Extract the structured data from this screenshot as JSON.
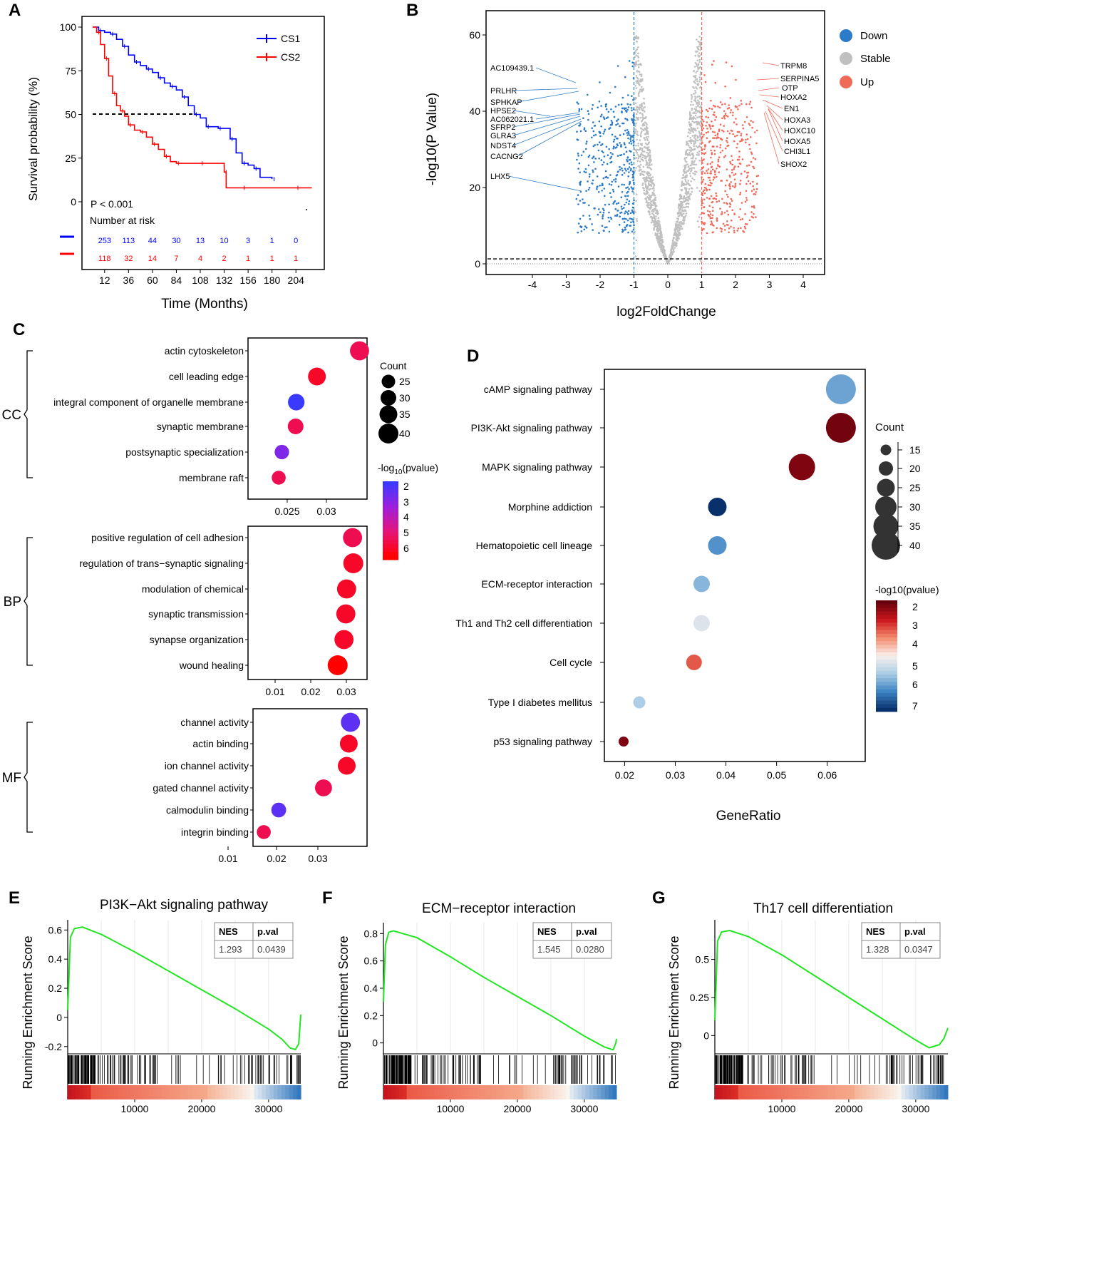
{
  "panels": {
    "A": "A",
    "B": "B",
    "C": "C",
    "D": "D",
    "E": "E",
    "F": "F",
    "G": "G"
  },
  "colors": {
    "cs1": "#0000ff",
    "cs2": "#ff0000",
    "down": "#2b7bc8",
    "stable": "#c0c0c0",
    "up": "#f06a5a",
    "gsea_line": "#22e622",
    "grad_low": "#ff0000",
    "grad_high": "#3a3aff"
  },
  "chart_data": [
    {
      "id": "A",
      "type": "line",
      "title": "",
      "xlabel": "Time (Months)",
      "ylabel": "Survival probability (%)",
      "xlim": [
        0,
        216
      ],
      "ylim": [
        0,
        100
      ],
      "x_ticks": [
        12,
        36,
        60,
        84,
        108,
        132,
        156,
        180,
        204
      ],
      "y_ticks": [
        0,
        25,
        50,
        75,
        100
      ],
      "pvalue_text": "P < 0.001",
      "risk_table_title": "Number at risk",
      "median_line_y": 50,
      "series": [
        {
          "name": "CS1",
          "color": "#0000ff",
          "x": [
            0,
            6,
            12,
            18,
            24,
            30,
            36,
            42,
            48,
            54,
            60,
            66,
            72,
            78,
            84,
            90,
            96,
            102,
            108,
            114,
            120,
            126,
            132,
            138,
            144,
            150,
            156,
            162,
            168,
            180
          ],
          "y": [
            100,
            98,
            97,
            96,
            93,
            89,
            84,
            80,
            78,
            76,
            74,
            71,
            68,
            66,
            64,
            60,
            55,
            50,
            48,
            43,
            43,
            42,
            42,
            36,
            28,
            22,
            21,
            19,
            14,
            13
          ]
        },
        {
          "name": "CS2",
          "color": "#ff0000",
          "x": [
            0,
            4,
            8,
            12,
            16,
            20,
            24,
            28,
            32,
            36,
            42,
            48,
            54,
            60,
            66,
            72,
            78,
            84,
            96,
            108,
            120,
            132,
            134,
            150,
            180,
            204,
            220
          ],
          "y": [
            100,
            97,
            90,
            82,
            72,
            62,
            55,
            52,
            49,
            44,
            41,
            40,
            37,
            33,
            30,
            26,
            23,
            22,
            22,
            22,
            22,
            17,
            8,
            8,
            8,
            8,
            8
          ]
        }
      ],
      "risk_table": {
        "rows": [
          {
            "name": "CS1",
            "color": "#0000ff",
            "values": [
              "253",
              "113",
              "44",
              "30",
              "13",
              "10",
              "3",
              "1",
              "0"
            ]
          },
          {
            "name": "CS2",
            "color": "#ff0000",
            "values": [
              "118",
              "32",
              "14",
              "7",
              "4",
              "2",
              "1",
              "1",
              "1"
            ]
          }
        ]
      }
    },
    {
      "id": "B",
      "type": "scatter",
      "title": "",
      "xlabel": "log2FoldChange",
      "ylabel": "-log10(P Value)",
      "xlim": [
        -5.2,
        4.7
      ],
      "ylim": [
        -2,
        65
      ],
      "x_ticks": [
        -4,
        -3,
        -2,
        -1,
        0,
        1,
        2,
        3,
        4
      ],
      "y_ticks": [
        0,
        20,
        40,
        60
      ],
      "fc_threshold": 1,
      "p_threshold": 1.3,
      "legend": [
        {
          "label": "Down",
          "color": "#2b7bc8"
        },
        {
          "label": "Stable",
          "color": "#c0c0c0"
        },
        {
          "label": "Up",
          "color": "#f06a5a"
        }
      ],
      "labels_down": [
        "AC109439.1",
        "PRLHR",
        "SPHKAP",
        "HPSE2",
        "AC062021.1",
        "SFRP2",
        "GLRA3",
        "NDST4",
        "CACNG2",
        "LHX5"
      ],
      "labels_up": [
        "TRPM8",
        "SERPINA5",
        "OTP",
        "HOXA2",
        "EN1",
        "HOXA3",
        "HOXC10",
        "HOXA5",
        "CHI3L1",
        "SHOX2"
      ]
    },
    {
      "id": "C",
      "type": "scatter",
      "title": "",
      "size_legend_title": "Count",
      "size_legend": [
        25,
        30,
        35,
        40
      ],
      "color_legend_title": "-log10(pvalue)",
      "color_legend_ticks": [
        2,
        3,
        4,
        5,
        6
      ],
      "groups": [
        {
          "name": "CC",
          "x_ticks": [
            "0.025",
            "0.03"
          ],
          "xlim": [
            0.018,
            0.037
          ],
          "terms": [
            {
              "label": "actin cytoskeleton",
              "x": 0.0358,
              "count": 38,
              "p": 5.5
            },
            {
              "label": "cell leading edge",
              "x": 0.029,
              "count": 35,
              "p": 6
            },
            {
              "label": "integral component of organelle membrane",
              "x": 0.0257,
              "count": 32,
              "p": 2
            },
            {
              "label": "synaptic membrane",
              "x": 0.0256,
              "count": 30,
              "p": 5.5
            },
            {
              "label": "postsynaptic specialization",
              "x": 0.0234,
              "count": 27,
              "p": 3
            },
            {
              "label": "membrane raft",
              "x": 0.0229,
              "count": 26,
              "p": 5.5
            }
          ]
        },
        {
          "name": "BP",
          "x_ticks": [
            "0.01",
            "0.02",
            "0.03"
          ],
          "xlim": [
            0.0035,
            0.0355
          ],
          "terms": [
            {
              "label": "positive regulation of cell adhesion",
              "x": 0.0316,
              "count": 38,
              "p": 5.5
            },
            {
              "label": "regulation of trans−synaptic signaling",
              "x": 0.0318,
              "count": 40,
              "p": 6
            },
            {
              "label": "modulation of chemical",
              "x": 0.03,
              "count": 38,
              "p": 6
            },
            {
              "label": "synaptic transmission",
              "x": 0.0298,
              "count": 38,
              "p": 6
            },
            {
              "label": "synapse organization",
              "x": 0.0293,
              "count": 38,
              "p": 6
            },
            {
              "label": "wound healing",
              "x": 0.0276,
              "count": 40,
              "p": 6.5
            }
          ]
        },
        {
          "name": "MF",
          "x_ticks": [
            "0.01",
            "0.02",
            "0.03"
          ],
          "xlim": [
            0.014,
            0.0415
          ],
          "terms": [
            {
              "label": "channel activity",
              "x": 0.0375,
              "count": 38,
              "p": 2.5
            },
            {
              "label": "actin binding",
              "x": 0.0371,
              "count": 35,
              "p": 6
            },
            {
              "label": "ion channel activity",
              "x": 0.0366,
              "count": 35,
              "p": 6
            },
            {
              "label": "gated channel activity",
              "x": 0.031,
              "count": 33,
              "p": 5.5
            },
            {
              "label": "calmodulin binding",
              "x": 0.0202,
              "count": 28,
              "p": 2.5
            },
            {
              "label": "integrin binding",
              "x": 0.0166,
              "count": 26,
              "p": 5.5
            }
          ]
        }
      ]
    },
    {
      "id": "D",
      "type": "scatter",
      "title": "",
      "xlabel": "GeneRatio",
      "xlim": [
        0.016,
        0.0675
      ],
      "x_ticks": [
        "0.02",
        "0.03",
        "0.04",
        "0.05",
        "0.06"
      ],
      "size_legend_title": "Count",
      "size_legend": [
        15,
        20,
        25,
        30,
        35,
        40
      ],
      "color_legend_title": "-log10(pvalue)",
      "color_legend_ticks": [
        2,
        3,
        4,
        5,
        6,
        7
      ],
      "terms": [
        {
          "label": "cAMP signaling pathway",
          "x": 0.0627,
          "count": 42,
          "p": 5.8
        },
        {
          "label": "PI3K-Akt signaling pathway",
          "x": 0.0627,
          "count": 42,
          "p": 2.1
        },
        {
          "label": "MAPK signaling pathway",
          "x": 0.055,
          "count": 37,
          "p": 2.2
        },
        {
          "label": "Morphine addiction",
          "x": 0.0383,
          "count": 26,
          "p": 7.0
        },
        {
          "label": "Hematopoietic cell lineage",
          "x": 0.0383,
          "count": 26,
          "p": 6.0
        },
        {
          "label": "ECM-receptor interaction",
          "x": 0.0352,
          "count": 23,
          "p": 5.6
        },
        {
          "label": "Th1 and Th2 cell differentiation",
          "x": 0.0352,
          "count": 23,
          "p": 4.8
        },
        {
          "label": "Cell cycle",
          "x": 0.0337,
          "count": 22,
          "p": 3.3
        },
        {
          "label": "Type I diabetes mellitus",
          "x": 0.0229,
          "count": 17,
          "p": 5.3
        },
        {
          "label": "p53 signaling pathway",
          "x": 0.0198,
          "count": 14,
          "p": 2.2
        }
      ]
    },
    {
      "id": "E",
      "type": "line",
      "title": "PI3K−Akt signaling pathway",
      "ylabel": "Running Enrichment Score",
      "ylim": [
        -0.25,
        0.67
      ],
      "y_ticks": [
        "0.6",
        "0.4",
        "0.2",
        "0",
        "-0.2"
      ],
      "y_tick_values": [
        0.6,
        0.4,
        0.2,
        0,
        -0.2
      ],
      "xlim": [
        0,
        34800
      ],
      "x_ticks": [
        10000,
        20000,
        30000
      ],
      "nes": "1.293",
      "pval": "0.0439",
      "x": [
        0,
        400,
        1000,
        2200,
        5000,
        10000,
        15000,
        20000,
        25000,
        30000,
        32000,
        33200,
        34000,
        34500,
        34800
      ],
      "y": [
        0.05,
        0.55,
        0.61,
        0.62,
        0.57,
        0.45,
        0.32,
        0.19,
        0.06,
        -0.08,
        -0.15,
        -0.21,
        -0.22,
        -0.18,
        0.02
      ]
    },
    {
      "id": "F",
      "type": "line",
      "title": "ECM−receptor interaction",
      "ylabel": "Running Enrichment Score",
      "ylim": [
        -0.08,
        0.88
      ],
      "y_ticks": [
        "0.8",
        "0.6",
        "0.4",
        "0.2",
        "0"
      ],
      "y_tick_values": [
        0.8,
        0.6,
        0.4,
        0.2,
        0
      ],
      "xlim": [
        0,
        34800
      ],
      "x_ticks": [
        10000,
        20000,
        30000
      ],
      "nes": "1.545",
      "pval": "0.0280",
      "x": [
        0,
        300,
        800,
        1500,
        5000,
        10000,
        15000,
        20000,
        25000,
        30000,
        33000,
        34300,
        34700,
        34800
      ],
      "y": [
        0.3,
        0.72,
        0.81,
        0.82,
        0.77,
        0.63,
        0.48,
        0.34,
        0.2,
        0.05,
        -0.03,
        -0.05,
        0.0,
        0.03
      ]
    },
    {
      "id": "G",
      "type": "line",
      "title": "Th17 cell differentiation",
      "ylabel": "Running Enrichment Score",
      "ylim": [
        -0.12,
        0.76
      ],
      "y_ticks": [
        "0.5",
        "0.25",
        "0"
      ],
      "y_tick_values": [
        0.5,
        0.25,
        0
      ],
      "xlim": [
        0,
        34800
      ],
      "x_ticks": [
        10000,
        20000,
        30000
      ],
      "nes": "1.328",
      "pval": "0.0347",
      "x": [
        0,
        400,
        1000,
        2200,
        5000,
        10000,
        15000,
        20000,
        25000,
        30000,
        32000,
        33500,
        34200,
        34800
      ],
      "y": [
        0.1,
        0.62,
        0.68,
        0.69,
        0.65,
        0.53,
        0.39,
        0.25,
        0.11,
        -0.03,
        -0.08,
        -0.06,
        -0.02,
        0.05
      ]
    }
  ],
  "gsea_table_headers": {
    "nes": "NES",
    "pval": "p.val"
  }
}
